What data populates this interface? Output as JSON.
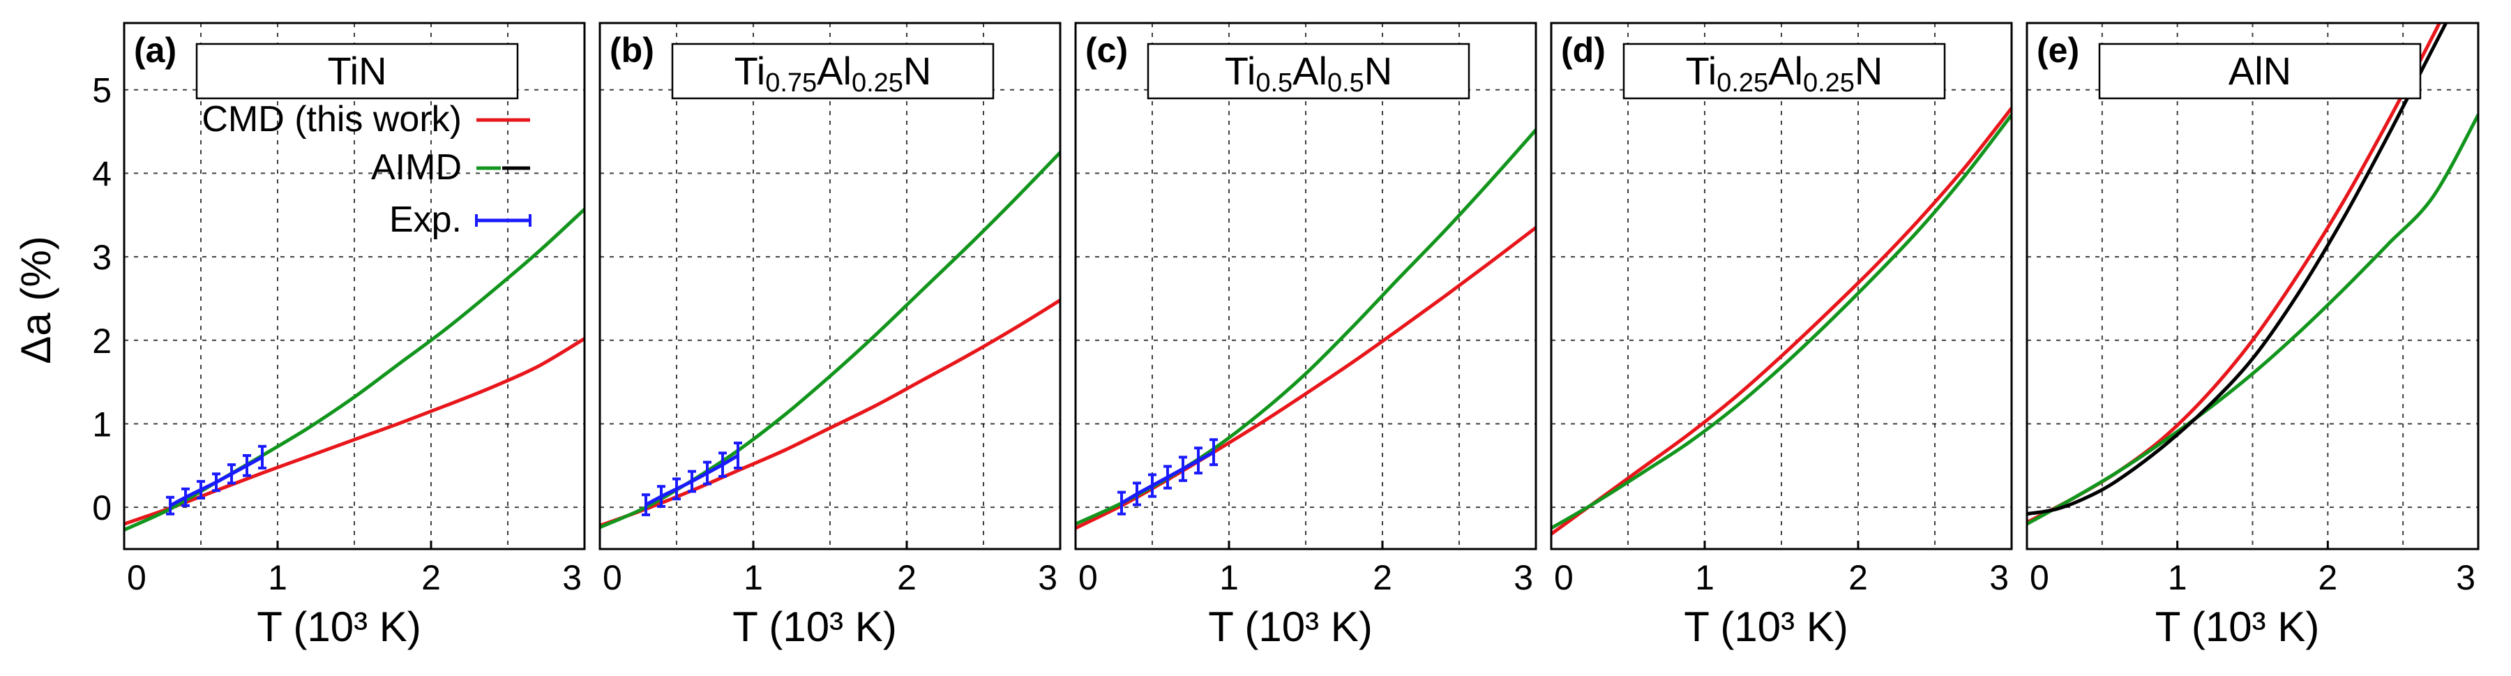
{
  "figure": {
    "ylabel": "Δa (%)",
    "xlabel": "T (10³ K)",
    "yticks": [
      "0",
      "1",
      "2",
      "3",
      "4",
      "5"
    ],
    "xticks": [
      "0",
      "1",
      "2",
      "3"
    ]
  },
  "colors": {
    "cmd": "#e8161b",
    "aimd": "#12951c",
    "aimd_legend": "#000000",
    "exp": "#1a1aff",
    "black": "#000000"
  },
  "legend": [
    {
      "label": "CMD (this work)",
      "color": "#e8161b",
      "type": "line"
    },
    {
      "label": "AIMD",
      "color": "#12951c",
      "type": "double"
    },
    {
      "label": "Exp.",
      "color": "#1a1aff",
      "type": "errorbar"
    }
  ],
  "chart_data": [
    {
      "panel": "(a)",
      "title_parts": [
        [
          "Ti",
          ""
        ],
        [
          "N",
          ""
        ]
      ],
      "title": "TiN",
      "type": "line",
      "xlim": [
        0,
        3
      ],
      "ylim": [
        -0.5,
        5.8
      ],
      "xlabel": "T (10³ K)",
      "ylabel": "Δa (%)",
      "series": [
        {
          "name": "CMD (this work)",
          "color": "#e8161b",
          "x": [
            0,
            0.3,
            0.6,
            0.9,
            1.2,
            1.5,
            1.8,
            2.1,
            2.4,
            2.7,
            3.0
          ],
          "y": [
            -0.2,
            -0.01,
            0.2,
            0.41,
            0.61,
            0.81,
            1.01,
            1.22,
            1.44,
            1.69,
            2.02
          ]
        },
        {
          "name": "AIMD",
          "color": "#12951c",
          "x": [
            0,
            0.3,
            0.6,
            0.9,
            1.2,
            1.5,
            1.8,
            2.1,
            2.4,
            2.7,
            3.0
          ],
          "y": [
            -0.27,
            -0.02,
            0.3,
            0.62,
            0.95,
            1.32,
            1.73,
            2.14,
            2.59,
            3.06,
            3.57
          ]
        }
      ],
      "exp": {
        "x": [
          0.3,
          0.4,
          0.5,
          0.6,
          0.7,
          0.8,
          0.9
        ],
        "y": [
          0.02,
          0.12,
          0.21,
          0.3,
          0.4,
          0.5,
          0.6
        ],
        "err": [
          0.1,
          0.1,
          0.1,
          0.1,
          0.11,
          0.12,
          0.13
        ]
      }
    },
    {
      "panel": "(b)",
      "title": "Ti0.75Al0.25N",
      "title_parts": [
        [
          "Ti",
          "0.75"
        ],
        [
          "Al",
          "0.25"
        ],
        [
          "N",
          ""
        ]
      ],
      "type": "line",
      "xlim": [
        0,
        3
      ],
      "ylim": [
        -0.5,
        5.8
      ],
      "xlabel": "T (10³ K)",
      "ylabel": "Δa (%)",
      "series": [
        {
          "name": "CMD (this work)",
          "color": "#e8161b",
          "x": [
            0,
            0.3,
            0.6,
            0.9,
            1.2,
            1.5,
            1.8,
            2.1,
            2.4,
            2.7,
            3.0
          ],
          "y": [
            -0.22,
            -0.02,
            0.2,
            0.44,
            0.68,
            0.95,
            1.22,
            1.52,
            1.82,
            2.14,
            2.48
          ]
        },
        {
          "name": "AIMD",
          "color": "#12951c",
          "x": [
            0,
            0.3,
            0.6,
            0.9,
            1.2,
            1.5,
            1.8,
            2.1,
            2.4,
            2.7,
            3.0
          ],
          "y": [
            -0.24,
            0.0,
            0.32,
            0.68,
            1.1,
            1.57,
            2.07,
            2.6,
            3.13,
            3.68,
            4.25
          ]
        }
      ],
      "exp": {
        "x": [
          0.3,
          0.4,
          0.5,
          0.6,
          0.7,
          0.8,
          0.9
        ],
        "y": [
          0.03,
          0.13,
          0.22,
          0.31,
          0.41,
          0.51,
          0.62
        ],
        "err": [
          0.12,
          0.12,
          0.12,
          0.12,
          0.13,
          0.14,
          0.15
        ]
      }
    },
    {
      "panel": "(c)",
      "title": "Ti0.5Al0.5N",
      "title_parts": [
        [
          "Ti",
          "0.5"
        ],
        [
          "Al",
          "0.5"
        ],
        [
          "N",
          ""
        ]
      ],
      "type": "line",
      "xlim": [
        0,
        3
      ],
      "ylim": [
        -0.5,
        5.8
      ],
      "xlabel": "T (10³ K)",
      "ylabel": "Δa (%)",
      "series": [
        {
          "name": "CMD (this work)",
          "color": "#e8161b",
          "x": [
            0,
            0.3,
            0.6,
            0.9,
            1.2,
            1.5,
            1.8,
            2.1,
            2.4,
            2.7,
            3.0
          ],
          "y": [
            -0.25,
            0.02,
            0.33,
            0.66,
            1.0,
            1.36,
            1.73,
            2.12,
            2.52,
            2.93,
            3.35
          ]
        },
        {
          "name": "AIMD",
          "color": "#12951c",
          "x": [
            0,
            0.3,
            0.6,
            0.9,
            1.2,
            1.5,
            1.8,
            2.1,
            2.4,
            2.7,
            3.0
          ],
          "y": [
            -0.2,
            0.05,
            0.35,
            0.7,
            1.12,
            1.6,
            2.15,
            2.73,
            3.3,
            3.9,
            4.52
          ]
        }
      ],
      "exp": {
        "x": [
          0.3,
          0.4,
          0.5,
          0.6,
          0.7,
          0.8,
          0.9
        ],
        "y": [
          0.05,
          0.16,
          0.26,
          0.36,
          0.46,
          0.56,
          0.66
        ],
        "err": [
          0.13,
          0.13,
          0.13,
          0.13,
          0.14,
          0.15,
          0.15
        ]
      }
    },
    {
      "panel": "(d)",
      "title": "Ti0.25Al0.25N",
      "title_parts": [
        [
          "Ti",
          "0.25"
        ],
        [
          "Al",
          "0.25"
        ],
        [
          "N",
          ""
        ]
      ],
      "type": "line",
      "xlim": [
        0,
        3
      ],
      "ylim": [
        -0.5,
        5.8
      ],
      "xlabel": "T (10³ K)",
      "ylabel": "Δa (%)",
      "series": [
        {
          "name": "CMD (this work)",
          "color": "#e8161b",
          "x": [
            0,
            0.3,
            0.6,
            0.9,
            1.2,
            1.5,
            1.8,
            2.1,
            2.4,
            2.7,
            3.0
          ],
          "y": [
            -0.32,
            0.08,
            0.48,
            0.88,
            1.32,
            1.81,
            2.33,
            2.87,
            3.45,
            4.08,
            4.78
          ]
        },
        {
          "name": "AIMD",
          "color": "#12951c",
          "x": [
            0,
            0.3,
            0.6,
            0.9,
            1.2,
            1.5,
            1.8,
            2.1,
            2.4,
            2.7,
            3.0
          ],
          "y": [
            -0.25,
            0.07,
            0.42,
            0.78,
            1.2,
            1.68,
            2.2,
            2.75,
            3.33,
            3.98,
            4.7
          ]
        }
      ]
    },
    {
      "panel": "(e)",
      "title": "AlN",
      "title_parts": [
        [
          "Al",
          ""
        ],
        [
          "N",
          ""
        ]
      ],
      "type": "line",
      "xlim": [
        0,
        3
      ],
      "ylim": [
        -0.5,
        5.8
      ],
      "xlabel": "T (10³ K)",
      "ylabel": "Δa (%)",
      "series": [
        {
          "name": "CMD (this work)",
          "color": "#e8161b",
          "x": [
            0,
            0.3,
            0.6,
            0.9,
            1.2,
            1.5,
            1.8,
            2.1,
            2.4,
            2.7,
            2.85
          ],
          "y": [
            -0.18,
            0.1,
            0.42,
            0.82,
            1.35,
            2.0,
            2.78,
            3.65,
            4.62,
            5.65,
            6.2
          ]
        },
        {
          "name": "AIMD",
          "color": "#12951c",
          "x": [
            0,
            0.3,
            0.6,
            0.9,
            1.2,
            1.5,
            1.8,
            2.1,
            2.4,
            2.7,
            3.0
          ],
          "y": [
            -0.2,
            0.1,
            0.42,
            0.78,
            1.17,
            1.6,
            2.08,
            2.6,
            3.15,
            3.72,
            4.7
          ]
        },
        {
          "name": "AIMD (black)",
          "color": "#000000",
          "x": [
            0,
            0.2,
            0.4,
            0.6,
            0.9,
            1.2,
            1.5,
            1.8,
            2.1,
            2.4,
            2.7,
            2.9
          ],
          "y": [
            -0.08,
            -0.02,
            0.12,
            0.32,
            0.72,
            1.2,
            1.78,
            2.55,
            3.45,
            4.45,
            5.5,
            6.2
          ]
        }
      ]
    }
  ]
}
